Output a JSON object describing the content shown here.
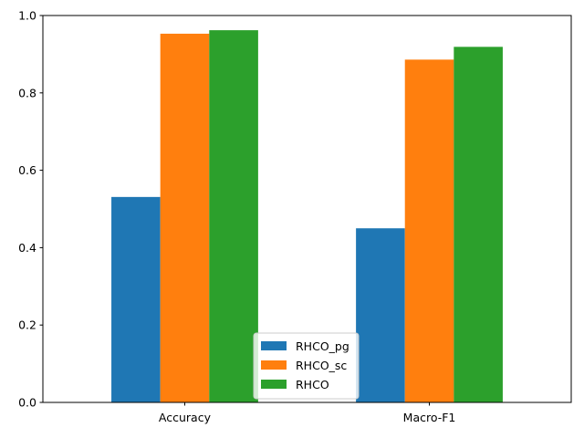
{
  "chart_data": {
    "type": "bar",
    "categories": [
      "Accuracy",
      "Macro-F1"
    ],
    "series": [
      {
        "name": "RHCO_pg",
        "values": [
          0.531,
          0.45
        ],
        "color": "#1f77b4"
      },
      {
        "name": "RHCO_sc",
        "values": [
          0.953,
          0.886
        ],
        "color": "#ff7f0e"
      },
      {
        "name": "RHCO",
        "values": [
          0.962,
          0.919
        ],
        "color": "#2ca02c"
      }
    ],
    "yticks": [
      "0.0",
      "0.2",
      "0.4",
      "0.6",
      "0.8",
      "1.0"
    ],
    "ylim": [
      0,
      1.0
    ],
    "grid": false,
    "legend_position": "lower-center"
  }
}
